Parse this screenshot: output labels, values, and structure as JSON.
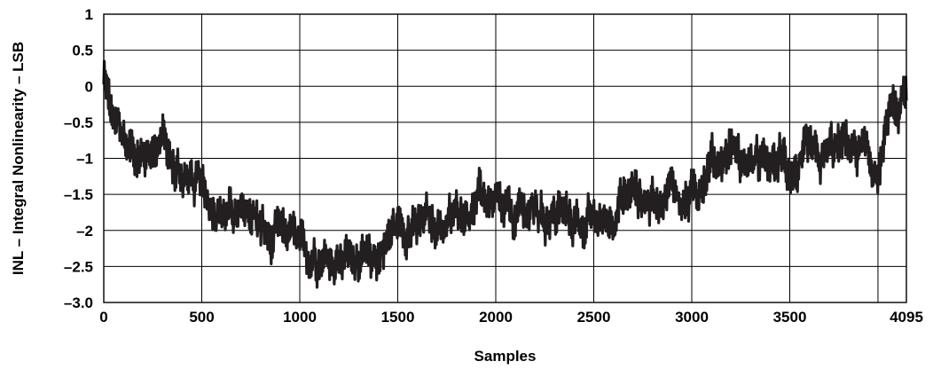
{
  "chart_data": {
    "type": "line",
    "title": "",
    "xlabel": "Samples",
    "ylabel": "INL – Integral Nonlinearity – LSB",
    "xlim": [
      0,
      4095
    ],
    "ylim": [
      -3.0,
      1.0
    ],
    "grid": true,
    "x_ticks": [
      0,
      500,
      1000,
      1500,
      2000,
      2500,
      3000,
      3500,
      4095
    ],
    "x_tick_labels": [
      "0",
      "500",
      "1000",
      "1500",
      "2000",
      "2500",
      "3000",
      "3500",
      "4095"
    ],
    "y_ticks": [
      1,
      0.5,
      0,
      -0.5,
      -1,
      -1.5,
      -2,
      -2.5,
      -3.0
    ],
    "y_tick_labels": [
      "1",
      "0.5",
      "0",
      "–0.5",
      "–1",
      "–1.5",
      "–2",
      "–2.5",
      "–3.0"
    ],
    "extra_vgrid": [
      3950
    ],
    "series": [
      {
        "color": "#231f20",
        "x": [
          0,
          20,
          40,
          60,
          80,
          120,
          160,
          200,
          250,
          300,
          350,
          400,
          450,
          500,
          550,
          600,
          650,
          700,
          750,
          800,
          850,
          900,
          950,
          1000,
          1050,
          1100,
          1150,
          1200,
          1250,
          1300,
          1350,
          1400,
          1450,
          1500,
          1550,
          1600,
          1650,
          1700,
          1750,
          1800,
          1850,
          1900,
          1930,
          1950,
          2000,
          2050,
          2100,
          2150,
          2200,
          2250,
          2300,
          2350,
          2400,
          2450,
          2500,
          2550,
          2600,
          2650,
          2700,
          2750,
          2800,
          2850,
          2900,
          2950,
          3000,
          3050,
          3100,
          3150,
          3200,
          3250,
          3300,
          3350,
          3400,
          3450,
          3500,
          3550,
          3600,
          3650,
          3700,
          3750,
          3800,
          3850,
          3900,
          3950,
          4000,
          4030,
          4060,
          4095
        ],
        "y": [
          0.1,
          -0.1,
          -0.45,
          -0.55,
          -0.6,
          -0.8,
          -0.9,
          -1.0,
          -0.85,
          -0.7,
          -1.1,
          -1.25,
          -1.3,
          -1.45,
          -1.6,
          -1.75,
          -1.8,
          -1.85,
          -1.7,
          -1.95,
          -2.2,
          -2.05,
          -2.0,
          -2.3,
          -2.35,
          -2.3,
          -2.35,
          -2.4,
          -2.35,
          -2.3,
          -2.5,
          -2.35,
          -2.1,
          -1.9,
          -1.95,
          -2.0,
          -1.85,
          -1.9,
          -1.95,
          -1.75,
          -1.7,
          -1.65,
          -1.5,
          -1.55,
          -1.7,
          -1.8,
          -1.85,
          -1.75,
          -1.7,
          -1.8,
          -1.75,
          -1.8,
          -1.85,
          -1.9,
          -1.9,
          -1.85,
          -1.75,
          -1.6,
          -1.4,
          -1.6,
          -1.55,
          -1.5,
          -1.35,
          -1.6,
          -1.55,
          -1.3,
          -1.0,
          -1.05,
          -0.8,
          -1.0,
          -1.1,
          -1.05,
          -1.15,
          -1.0,
          -1.1,
          -1.2,
          -0.9,
          -1.1,
          -0.9,
          -0.85,
          -0.8,
          -0.9,
          -0.95,
          -1.3,
          -0.5,
          -0.25,
          -0.35,
          -0.15
        ]
      }
    ]
  }
}
